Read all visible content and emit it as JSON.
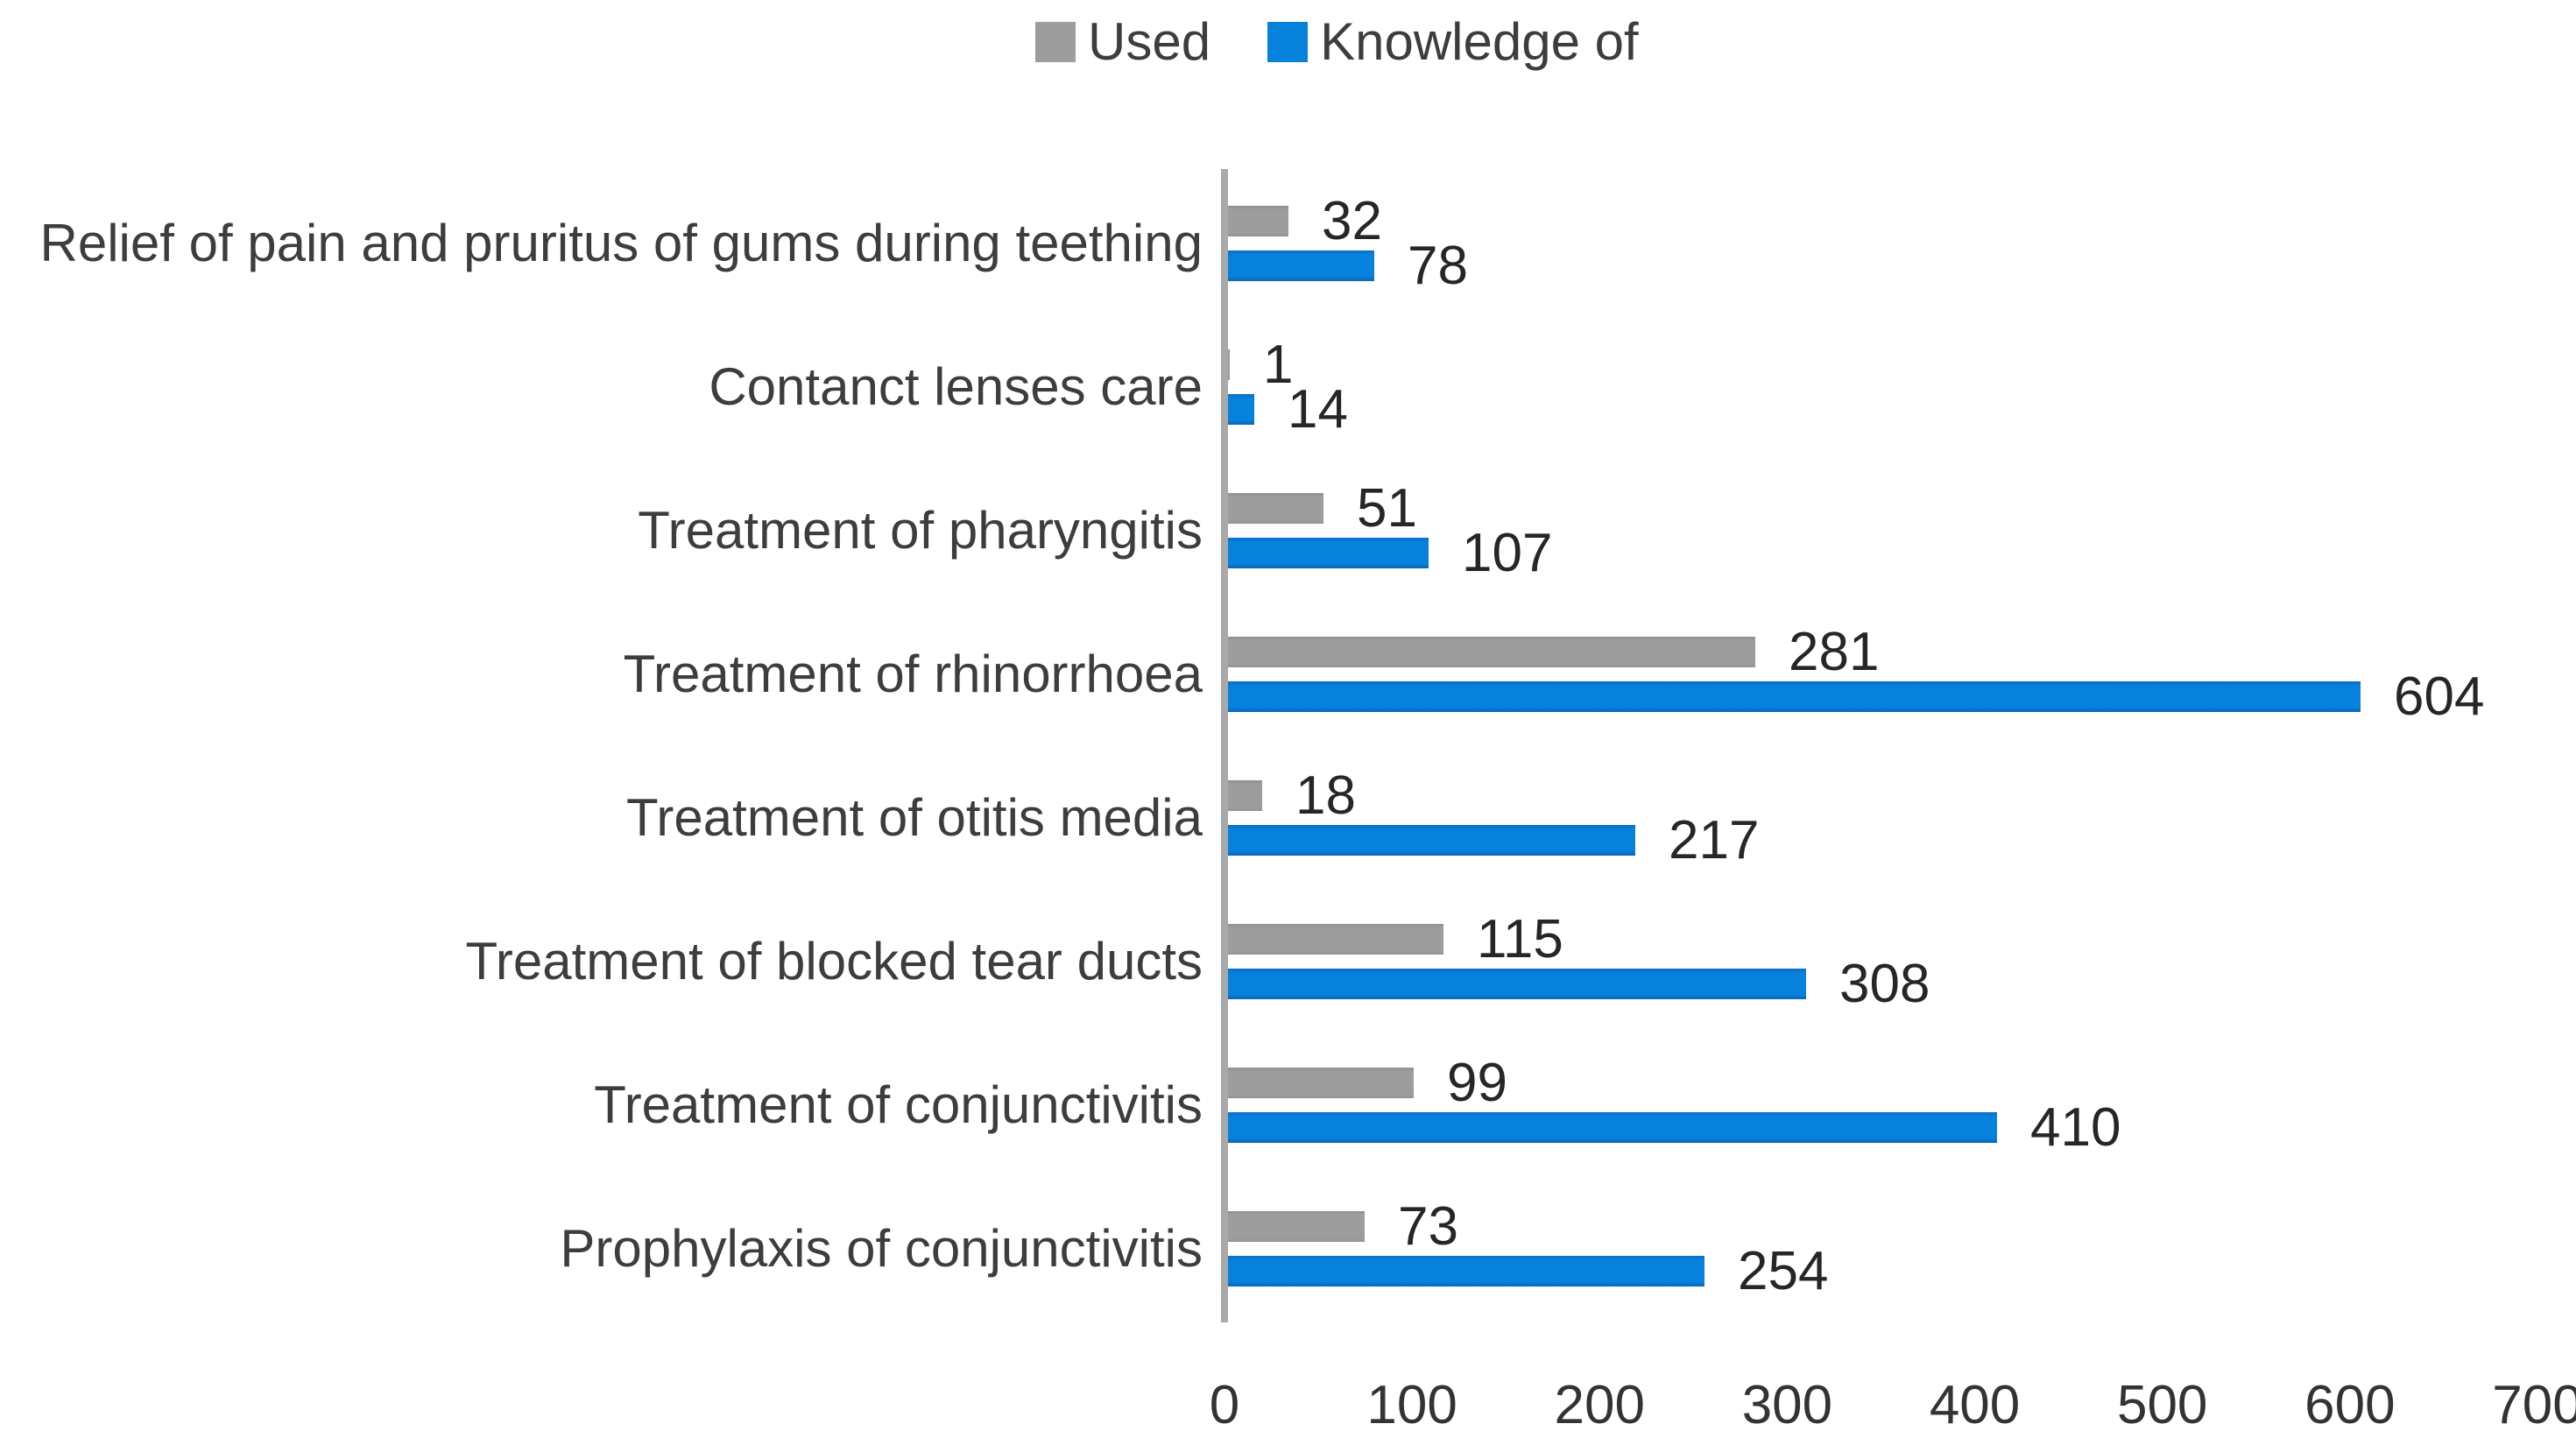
{
  "chart_data": {
    "type": "bar",
    "orientation": "horizontal",
    "title": "",
    "xlabel": "",
    "ylabel": "",
    "categories": [
      "Relief of pain and pruritus of gums during teething",
      "Contanct lenses care",
      "Treatment of pharyngitis",
      "Treatment of rhinorrhoea",
      "Treatment of otitis media",
      "Treatment of blocked tear ducts",
      "Treatment of conjunctivitis",
      "Prophylaxis of conjunctivitis"
    ],
    "series": [
      {
        "name": "Used",
        "color": "#9d9d9d",
        "values": [
          32,
          1,
          51,
          281,
          18,
          115,
          99,
          73
        ]
      },
      {
        "name": "Knowledge of",
        "color": "#0682dd",
        "values": [
          78,
          14,
          107,
          604,
          217,
          308,
          410,
          254
        ]
      }
    ],
    "value_labels": true,
    "xticks": [
      0,
      100,
      200,
      300,
      400,
      500,
      600,
      700
    ],
    "xlim": [
      0,
      700
    ],
    "grid": false,
    "legend_position": "top",
    "axis_color": "#a9a9a9"
  }
}
